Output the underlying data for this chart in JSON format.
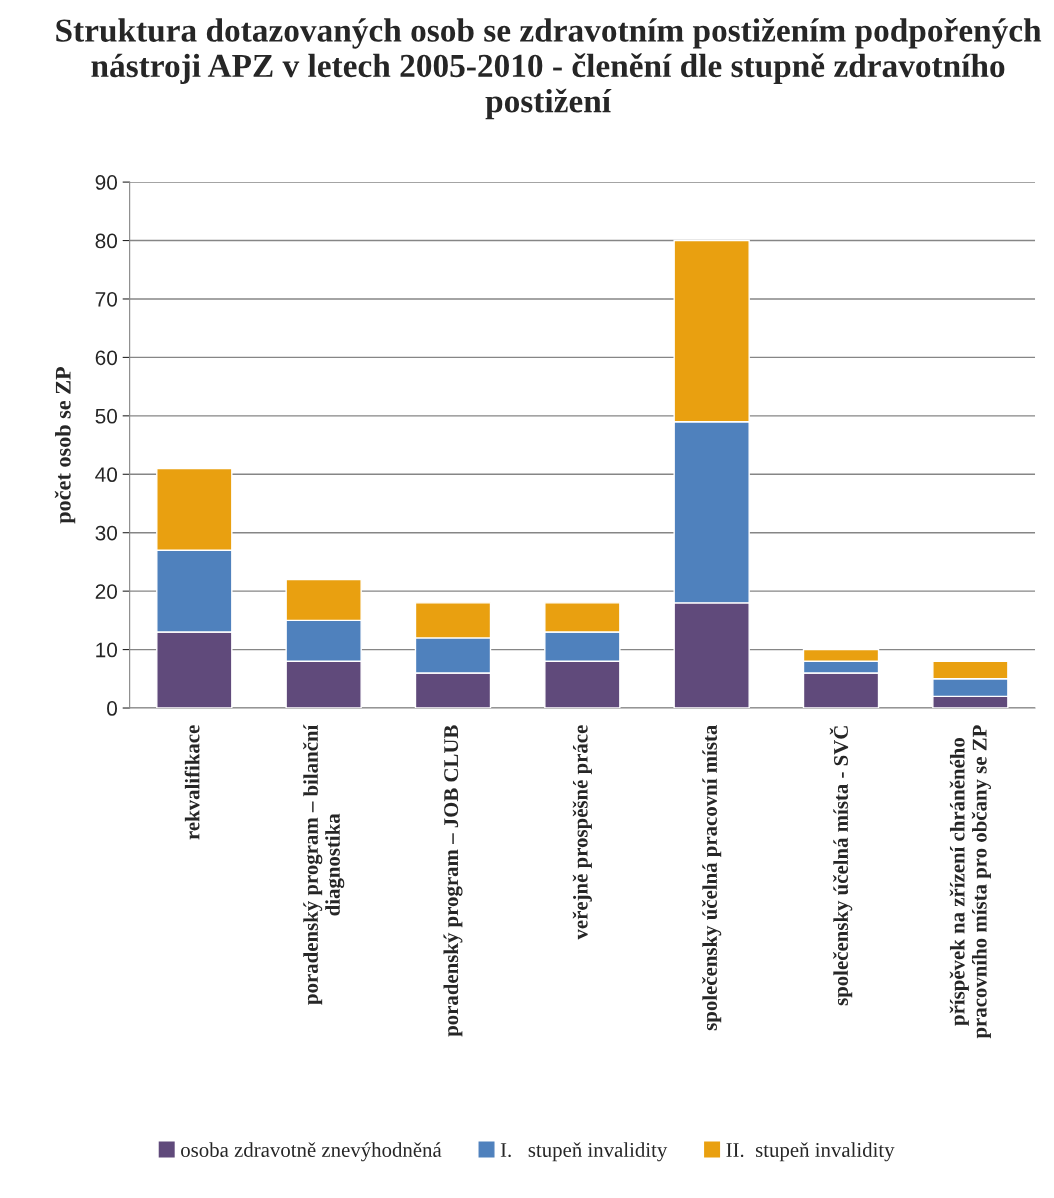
{
  "chart_data": {
    "type": "bar",
    "stacked": true,
    "title": "Struktura dotazovaných osob se zdravotním postižením podpořených nástroji APZ v letech 2005-2010 - členění dle stupně zdravotního postižení",
    "ylabel": "počet osob se ZP",
    "categories": [
      "rekvalifikace",
      "poradenský program – bilanční\ndiagnostika",
      "poradenský program – JOB CLUB",
      "veřejně prospěšné práce",
      "společensky účelná pracovní místa",
      "společensky účelná místa - SVČ",
      "příspěvek na zřízení chráněného\npracovního místa pro občany se ZP"
    ],
    "series": [
      {
        "name": "osoba zdravotně znevýhodněná",
        "color": "#604a7b",
        "values": [
          13,
          8,
          6,
          8,
          18,
          6,
          2
        ]
      },
      {
        "name": "I.   stupeň invalidity",
        "color": "#4f81bd",
        "values": [
          14,
          7,
          6,
          5,
          31,
          2,
          3
        ]
      },
      {
        "name": "II.  stupeň invalidity",
        "color": "#e9a010",
        "values": [
          14,
          7,
          6,
          5,
          31,
          2,
          3
        ]
      }
    ],
    "ylim": [
      0,
      90
    ],
    "yticks": [
      0,
      10,
      20,
      30,
      40,
      50,
      60,
      70,
      80,
      90
    ],
    "grid": "y",
    "legend": "bottom"
  }
}
